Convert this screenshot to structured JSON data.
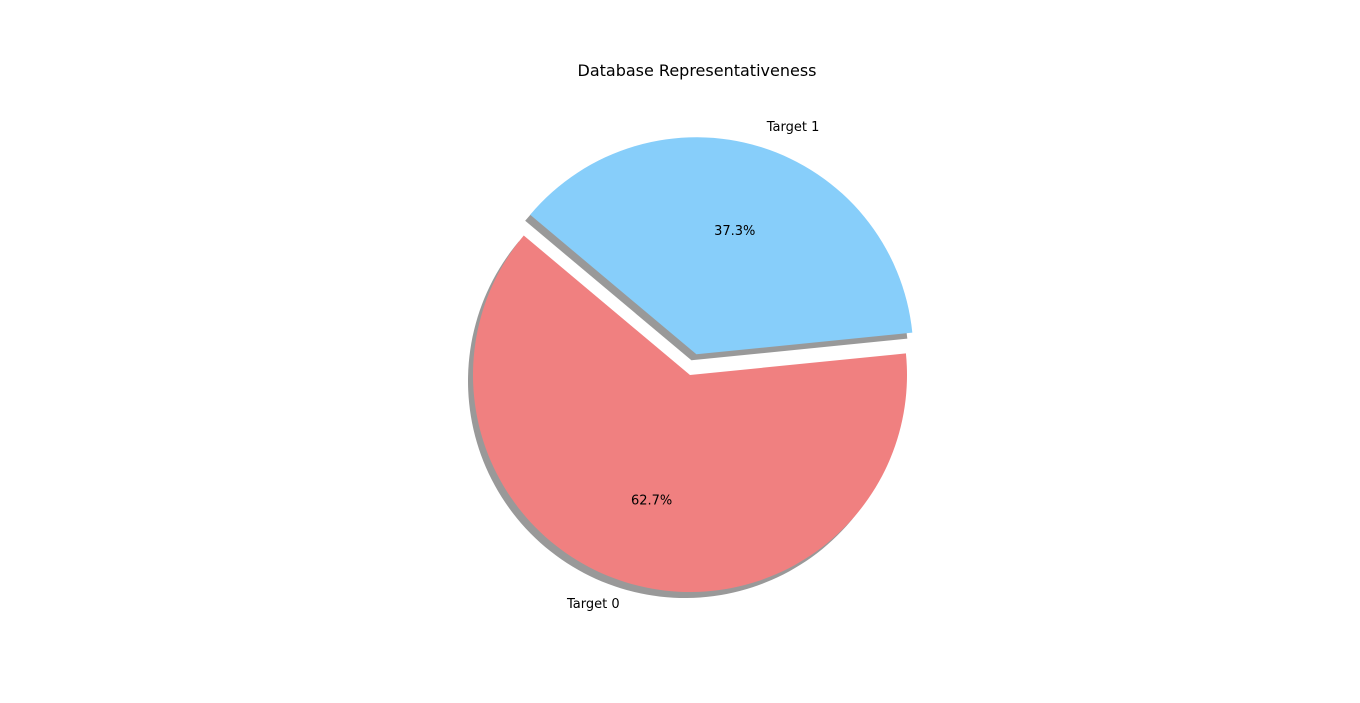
{
  "chart_data": {
    "type": "pie",
    "title": "Database Representativeness",
    "shadow": true,
    "start_angle_deg": 140,
    "slices": [
      {
        "label": "Target 0",
        "value": 62.7,
        "pct_label": "62.7%",
        "color": "#F08080",
        "explode": 0
      },
      {
        "label": "Target 1",
        "value": 37.3,
        "pct_label": "37.3%",
        "color": "#87CEFA",
        "explode": 0.1
      }
    ]
  }
}
